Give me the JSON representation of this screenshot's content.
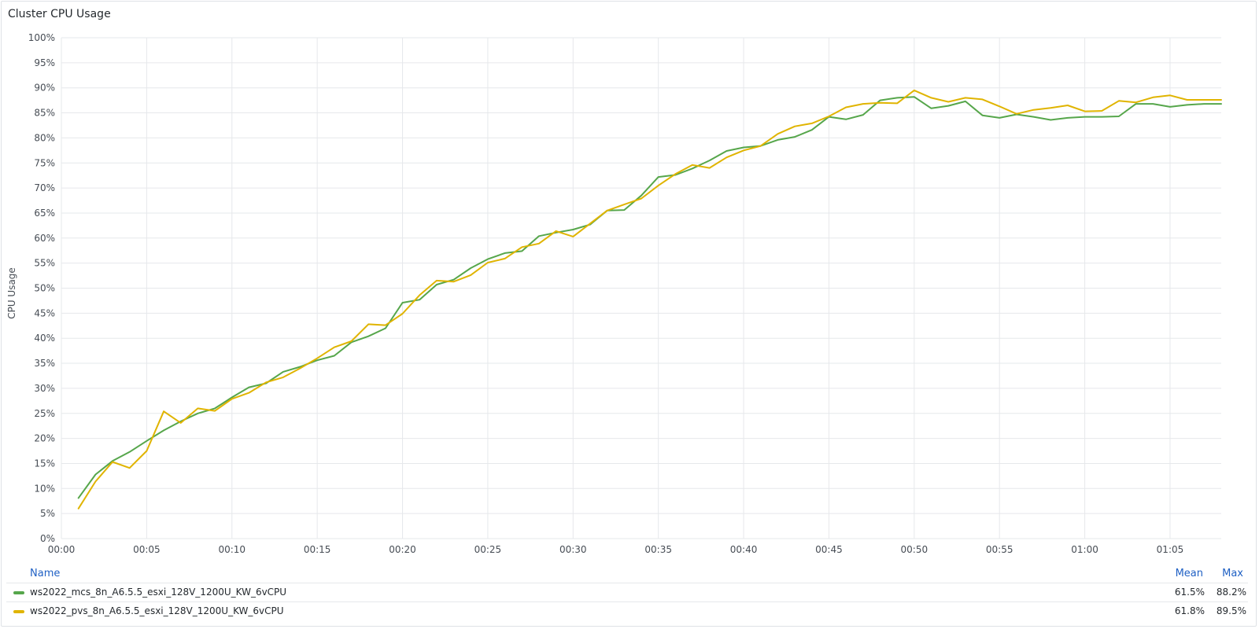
{
  "panel": {
    "title": "Cluster CPU Usage"
  },
  "chart_data": {
    "type": "line",
    "ylabel": "CPU Usage",
    "xlabel": "",
    "ylim": [
      0,
      100
    ],
    "y_tick_labels": [
      "0%",
      "5%",
      "10%",
      "15%",
      "20%",
      "25%",
      "30%",
      "35%",
      "40%",
      "45%",
      "50%",
      "55%",
      "60%",
      "65%",
      "70%",
      "75%",
      "80%",
      "85%",
      "90%",
      "95%",
      "100%"
    ],
    "x_tick_labels": [
      "00:00",
      "00:05",
      "00:10",
      "00:15",
      "00:20",
      "00:25",
      "00:30",
      "00:35",
      "00:40",
      "00:45",
      "00:50",
      "00:55",
      "01:00",
      "01:05"
    ],
    "x_range_minutes": [
      0,
      68
    ],
    "grid": true,
    "x_minutes": [
      1,
      2,
      3,
      4,
      5,
      6,
      7,
      8,
      9,
      10,
      11,
      12,
      13,
      14,
      15,
      16,
      17,
      18,
      19,
      20,
      21,
      22,
      23,
      24,
      25,
      26,
      27,
      28,
      29,
      30,
      31,
      32,
      33,
      34,
      35,
      36,
      37,
      38,
      39,
      40,
      41,
      42,
      43,
      44,
      45,
      46,
      47,
      48,
      49,
      50,
      51,
      52,
      53,
      54,
      55,
      56,
      57,
      58,
      59,
      60,
      61,
      62,
      63,
      64,
      65,
      66,
      67,
      68
    ],
    "series": [
      {
        "name": "ws2022_mcs_8n_A6.5.5_esxi_128V_1200U_KW_6vCPU",
        "color": "#56a64b",
        "values": [
          8.1,
          12.8,
          15.5,
          17.3,
          19.5,
          21.6,
          23.4,
          25.0,
          26.0,
          28.2,
          30.2,
          31.0,
          33.3,
          34.3,
          35.6,
          36.5,
          39.2,
          40.4,
          42.0,
          47.1,
          47.7,
          50.7,
          51.7,
          54.0,
          55.8,
          57.0,
          57.4,
          60.4,
          61.1,
          61.7,
          62.7,
          65.5,
          65.6,
          68.5,
          72.2,
          72.6,
          73.9,
          75.5,
          77.4,
          78.1,
          78.4,
          79.6,
          80.2,
          81.6,
          84.2,
          83.7,
          84.6,
          87.5,
          88.0,
          88.2,
          85.9,
          86.4,
          87.3,
          84.5,
          84.0,
          84.7,
          84.2,
          83.6,
          84.0,
          84.2,
          84.2,
          84.3,
          86.8,
          86.8,
          86.2,
          86.6,
          86.8,
          86.8
        ]
      },
      {
        "name": "ws2022_pvs_8n_A6.5.5_esxi_128V_1200U_KW_6vCPU",
        "color": "#e0b400",
        "values": [
          6.0,
          11.4,
          15.3,
          14.1,
          17.5,
          25.4,
          23.1,
          26.0,
          25.5,
          27.9,
          29.1,
          31.2,
          32.2,
          34.0,
          36.0,
          38.2,
          39.4,
          42.8,
          42.6,
          44.9,
          48.6,
          51.5,
          51.3,
          52.6,
          55.1,
          55.9,
          58.2,
          58.9,
          61.4,
          60.3,
          62.9,
          65.5,
          66.7,
          67.9,
          70.5,
          72.8,
          74.6,
          74.0,
          76.1,
          77.5,
          78.4,
          80.8,
          82.3,
          82.9,
          84.3,
          86.1,
          86.8,
          87.0,
          86.9,
          89.5,
          88.0,
          87.2,
          88.0,
          87.7,
          86.3,
          84.8,
          85.6,
          86.0,
          86.5,
          85.3,
          85.4,
          87.4,
          87.1,
          88.1,
          88.5,
          87.6,
          87.6,
          87.6
        ]
      }
    ]
  },
  "legend": {
    "headers": {
      "name": "Name",
      "mean": "Mean",
      "max": "Max"
    },
    "rows": [
      {
        "name": "ws2022_mcs_8n_A6.5.5_esxi_128V_1200U_KW_6vCPU",
        "mean": "61.5%",
        "max": "88.2%",
        "color": "#56a64b"
      },
      {
        "name": "ws2022_pvs_8n_A6.5.5_esxi_128V_1200U_KW_6vCPU",
        "mean": "61.8%",
        "max": "89.5%",
        "color": "#e0b400"
      }
    ]
  }
}
